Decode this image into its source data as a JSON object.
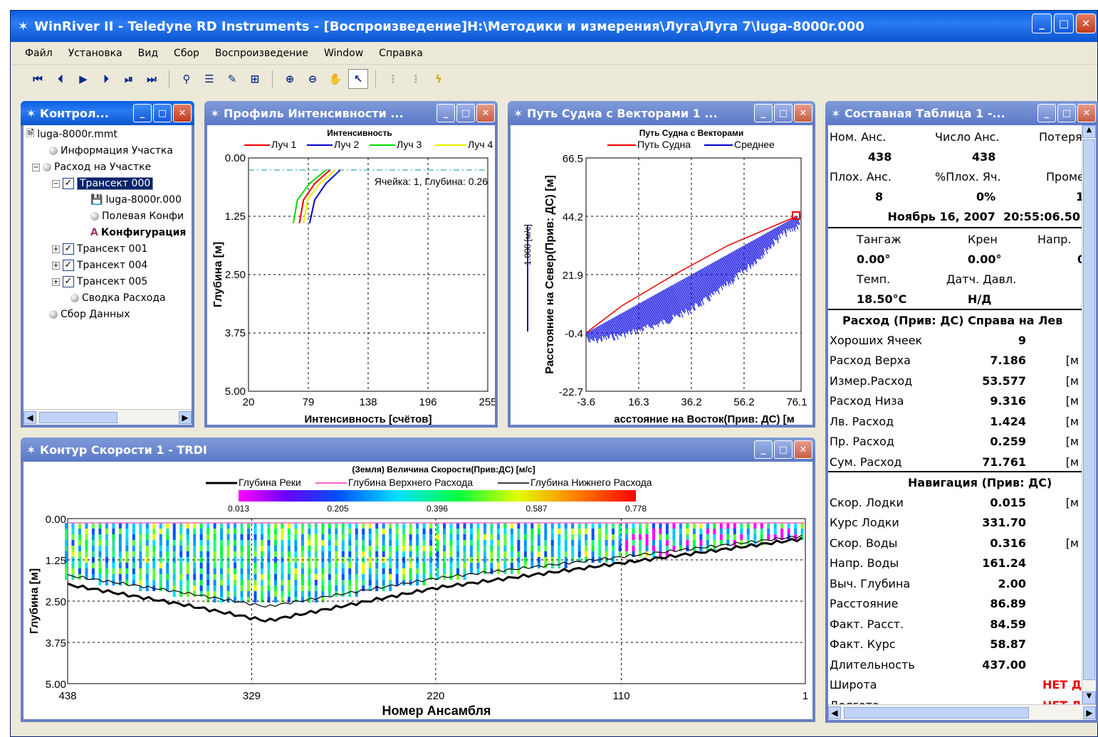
{
  "app": {
    "title": "WinRiver II - Teledyne RD Instruments - [Воспроизведение]H:\\Методики и измерения\\Луга\\Луга 7\\luga-8000r.000"
  },
  "menu": [
    "Файл",
    "Установка",
    "Вид",
    "Сбор",
    "Воспроизведение",
    "Window",
    "Справка"
  ],
  "toolbar": {
    "play": [
      "⏮",
      "⏴",
      "▶",
      "⏵",
      "⏯",
      "⏭"
    ]
  },
  "control": {
    "title": "Контрол...",
    "nodes": [
      {
        "label": "luga-8000r.mmt"
      },
      {
        "label": "Информация Участка"
      },
      {
        "label": "Расход на Участке"
      },
      {
        "label": "Трансект 000"
      },
      {
        "label": "luga-8000r.000"
      },
      {
        "label": "Полевая Конфи"
      },
      {
        "label": "Конфигурация"
      },
      {
        "label": "Трансект 001"
      },
      {
        "label": "Трансект 004"
      },
      {
        "label": "Трансект 005"
      },
      {
        "label": "Сводка Расхода"
      },
      {
        "label": "Сбор Данных"
      }
    ]
  },
  "profile": {
    "title": "Профиль Интенсивности ...",
    "chart_title": "Интенсивность",
    "legend": [
      "Луч 1",
      "Луч 2",
      "Луч 3",
      "Луч 4"
    ],
    "ylabel": "Глубина [м]",
    "xlabel": "Интенсивность [счётов]",
    "annotation": "Ячейка: 1, Глубина: 0.26",
    "xticks": [
      "20",
      "79",
      "138",
      "196",
      "255"
    ],
    "yticks": [
      "0.00",
      "1.25",
      "2.50",
      "3.75",
      "5.00"
    ]
  },
  "track": {
    "title": "Путь Судна с Векторами 1 ...",
    "chart_title": "Путь Судна с Векторами",
    "legend": [
      "Путь Судна",
      "Среднее"
    ],
    "ylabel": "Расстояние на Север(Прив: ДС) [м]",
    "xlabel": "асстояние на Восток(Прив: ДС) [м",
    "scale_label": "1.000 [м/с]",
    "xticks": [
      "-3.6",
      "16.3",
      "36.2",
      "56.2",
      "76.1"
    ],
    "yticks": [
      "66.5",
      "44.2",
      "21.9",
      "-0.4",
      "-22.7"
    ]
  },
  "contour": {
    "title": "Контур Скорости 1 - TRDI",
    "chart_title": "(Земля) Величина Скорости(Прив:ДС) [м/с]",
    "legend": [
      "Глубина Реки",
      "Глубина Верхнего Расхода",
      "Глубина Нижнего Расхода"
    ],
    "cbar_ticks": [
      "0.013",
      "0.205",
      "0.396",
      "0.587",
      "0.778"
    ],
    "ylabel": "Глубина [м]",
    "xlabel": "Номер Ансамбля",
    "xticks": [
      "438",
      "329",
      "220",
      "110",
      "1"
    ],
    "yticks": [
      "0.00",
      "1.25",
      "2.50",
      "3.75",
      "5.00"
    ]
  },
  "table": {
    "title": "Составная Таблица 1 -...",
    "h1": [
      "Ном. Анс.",
      "Число Анс.",
      "Потеря"
    ],
    "v1": [
      "438",
      "438"
    ],
    "h2": [
      "Плох. Анс.",
      "%Плох. Яч.",
      "Проме"
    ],
    "v2": [
      "8",
      "0%",
      "1"
    ],
    "datetime": "Ноябрь 16, 2007  20:55:06.50",
    "h3": [
      "Тангаж",
      "Крен",
      "Напр."
    ],
    "v3": [
      "0.00°",
      "0.00°",
      "0"
    ],
    "h4": [
      "Темп.",
      "Датч. Давл."
    ],
    "v4": [
      "18.50°C",
      "Н/Д"
    ],
    "discharge_header": "Расход (Прив: ДС) Справа на Лев",
    "discharge": [
      {
        "label": "Хороших Ячеек",
        "value": "9",
        "unit": ""
      },
      {
        "label": "Расход Верха",
        "value": "7.186",
        "unit": "[м"
      },
      {
        "label": "Измер.Расход",
        "value": "53.577",
        "unit": "[м"
      },
      {
        "label": "Расход Низа",
        "value": "9.316",
        "unit": "[м"
      },
      {
        "label": "Лв. Расход",
        "value": "1.424",
        "unit": "[м"
      },
      {
        "label": "Пр. Расход",
        "value": "0.259",
        "unit": "[м"
      },
      {
        "label": "Сум. Расход",
        "value": "71.761",
        "unit": "[м"
      }
    ],
    "nav_header": "Навигация (Прив: ДС)",
    "nav": [
      {
        "label": "Скор. Лодки",
        "value": "0.015",
        "unit": "[м"
      },
      {
        "label": "Курс Лодки",
        "value": "331.70",
        "unit": ""
      },
      {
        "label": "Скор. Воды",
        "value": "0.316",
        "unit": "[м"
      },
      {
        "label": "Напр. Воды",
        "value": "161.24",
        "unit": ""
      },
      {
        "label": "Выч. Глубина",
        "value": "2.00",
        "unit": ""
      },
      {
        "label": "Расстояние",
        "value": "86.89",
        "unit": ""
      },
      {
        "label": "Факт. Расст.",
        "value": "84.59",
        "unit": ""
      },
      {
        "label": "Факт. Курс",
        "value": "58.87",
        "unit": ""
      },
      {
        "label": "Длительность",
        "value": "437.00",
        "unit": ""
      },
      {
        "label": "Широта",
        "value": "НЕТ Д",
        "unit": ""
      },
      {
        "label": "Долгота",
        "value": "НЕТ Д",
        "unit": ""
      }
    ]
  },
  "chart_data": [
    {
      "type": "line",
      "title": "Интенсивность",
      "xlabel": "Интенсивность [счётов]",
      "ylabel": "Глубина [м]",
      "xlim": [
        20,
        255
      ],
      "ylim": [
        5,
        0
      ],
      "series": [
        {
          "name": "Луч 1",
          "x": [
            100,
            85,
            74,
            70
          ],
          "y": [
            0.26,
            0.55,
            0.9,
            1.4
          ]
        },
        {
          "name": "Луч 2",
          "x": [
            110,
            96,
            85,
            80
          ],
          "y": [
            0.26,
            0.55,
            0.9,
            1.4
          ]
        },
        {
          "name": "Луч 3",
          "x": [
            96,
            80,
            68,
            64
          ],
          "y": [
            0.26,
            0.55,
            0.9,
            1.4
          ]
        },
        {
          "name": "Луч 4",
          "x": [
            105,
            90,
            78,
            74
          ],
          "y": [
            0.26,
            0.55,
            0.9,
            1.4
          ]
        }
      ]
    },
    {
      "type": "line",
      "title": "Путь Судна с Векторами",
      "xlim": [
        -3.6,
        76.1
      ],
      "ylim": [
        -22.7,
        66.5
      ],
      "series": [
        {
          "name": "Путь Судна",
          "x": [
            -3.6,
            10,
            30,
            50,
            76.1
          ],
          "y": [
            -0.4,
            10,
            22,
            33,
            44.2
          ]
        }
      ]
    },
    {
      "type": "heatmap",
      "title": "(Земля) Величина Скорости(Прив:ДС) [м/с]",
      "xlabel": "Номер Ансамбля",
      "ylabel": "Глубина [м]",
      "xlim": [
        438,
        1
      ],
      "ylim": [
        5,
        0
      ],
      "clim": [
        0.013,
        0.778
      ]
    }
  ]
}
